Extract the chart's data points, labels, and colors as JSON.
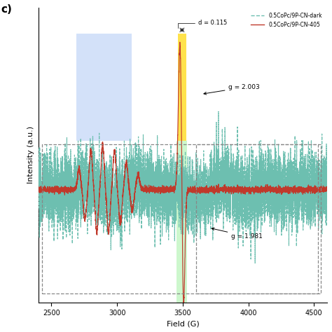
{
  "xlabel": "Field (G)",
  "ylabel": "Intensity (a.u.)",
  "x_min": 2400,
  "x_max": 4600,
  "legend_dark": "0.5CoPc/9P-CN-dark",
  "legend_light": "0.5CoPc/9P-CN-405",
  "line_color_dark": "#6dbfb0",
  "line_color_light": "#c0392b",
  "panel_label": "c)"
}
